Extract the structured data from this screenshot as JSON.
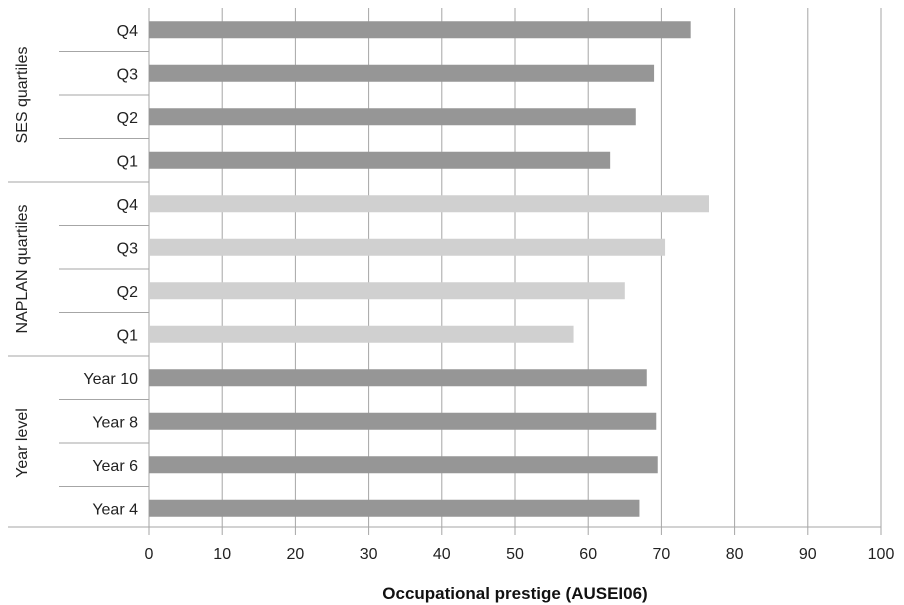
{
  "chart_data": {
    "type": "bar",
    "orientation": "horizontal",
    "xlabel": "Occupational prestige (AUSEI06)",
    "xlim": [
      0,
      100
    ],
    "xticks": [
      0,
      10,
      20,
      30,
      40,
      50,
      60,
      70,
      80,
      90,
      100
    ],
    "grid": true,
    "colors": {
      "dark": "#969696",
      "light": "#d0d0d0",
      "grid": "#a6a6a6"
    },
    "groups": [
      {
        "name": "SES quartiles",
        "color": "dark",
        "categories": [
          "Q4",
          "Q3",
          "Q2",
          "Q1"
        ],
        "values": [
          74,
          69,
          66.5,
          63
        ]
      },
      {
        "name": "NAPLAN quartiles",
        "color": "light",
        "categories": [
          "Q4",
          "Q3",
          "Q2",
          "Q1"
        ],
        "values": [
          76.5,
          70.5,
          65,
          58
        ]
      },
      {
        "name": "Year level",
        "color": "dark",
        "categories": [
          "Year 10",
          "Year 8",
          "Year 6",
          "Year 4"
        ],
        "values": [
          68,
          69.3,
          69.5,
          67
        ]
      }
    ]
  }
}
